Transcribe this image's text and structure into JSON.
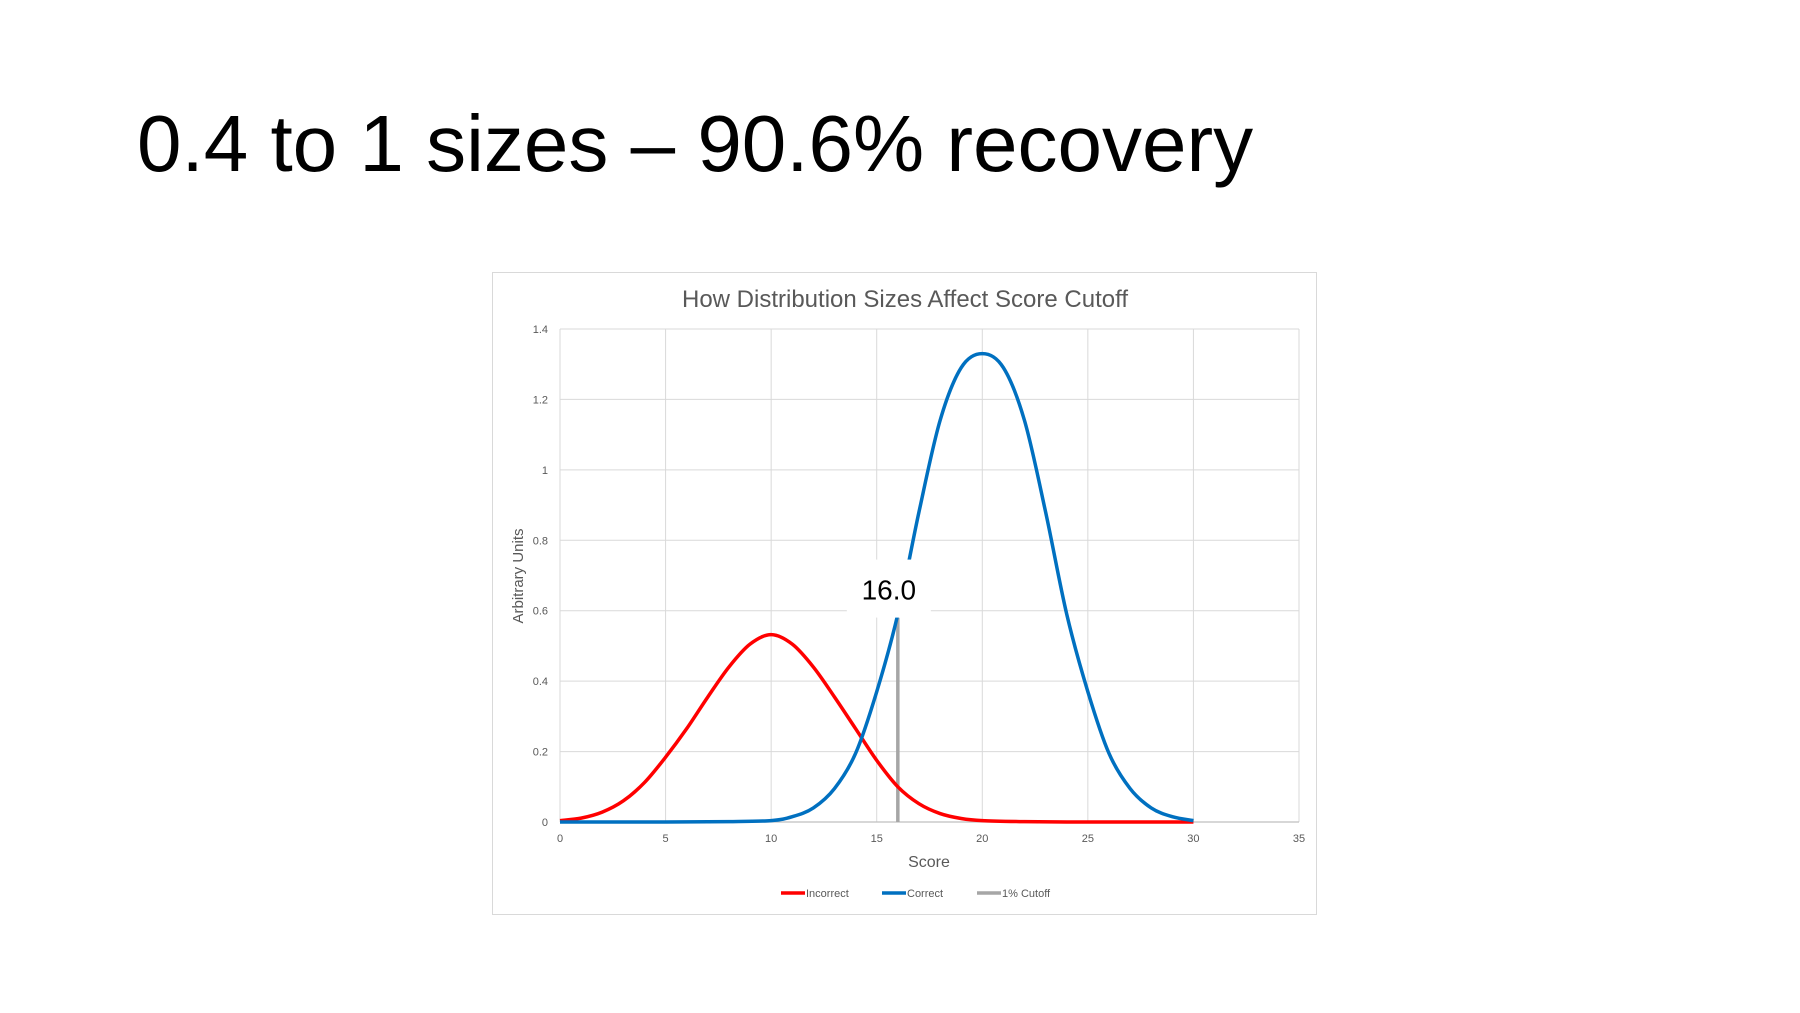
{
  "slide": {
    "title": "0.4 to 1 sizes – 90.6% recovery"
  },
  "chart_data": {
    "type": "line",
    "title": "How Distribution Sizes Affect Score Cutoff",
    "xlabel": "Score",
    "ylabel": "Arbitrary Units",
    "xlim": [
      0,
      35
    ],
    "ylim": [
      0,
      1.4
    ],
    "xticks": [
      0,
      5,
      10,
      15,
      20,
      25,
      30,
      35
    ],
    "yticks": [
      0,
      0.2,
      0.4,
      0.6,
      0.8,
      1,
      1.2,
      1.4
    ],
    "ytick_labels": [
      "0",
      "0.2",
      "0.4",
      "0.6",
      "0.8",
      "1",
      "1.2",
      "1.4"
    ],
    "grid": true,
    "legend_position": "bottom",
    "series": [
      {
        "name": "Incorrect",
        "color": "#ff0000",
        "x": [
          0,
          1,
          2,
          3,
          4,
          5,
          6,
          7,
          8,
          9,
          10,
          11,
          12,
          13,
          14,
          15,
          16,
          17,
          18,
          19,
          20,
          22,
          24,
          26,
          28,
          30
        ],
        "y": [
          0.004,
          0.011,
          0.028,
          0.06,
          0.112,
          0.184,
          0.265,
          0.355,
          0.44,
          0.505,
          0.532,
          0.505,
          0.44,
          0.355,
          0.265,
          0.175,
          0.1,
          0.052,
          0.024,
          0.01,
          0.004,
          0.001,
          0,
          0,
          0,
          0
        ]
      },
      {
        "name": "Correct",
        "color": "#0070c0",
        "x": [
          0,
          5,
          8,
          10,
          11,
          12,
          13,
          14,
          15,
          16,
          17,
          18,
          19,
          20,
          21,
          22,
          23,
          24,
          25,
          26,
          27,
          28,
          29,
          30
        ],
        "y": [
          0,
          0,
          0.001,
          0.004,
          0.015,
          0.04,
          0.095,
          0.195,
          0.37,
          0.59,
          0.88,
          1.14,
          1.29,
          1.33,
          1.29,
          1.14,
          0.88,
          0.59,
          0.37,
          0.195,
          0.095,
          0.04,
          0.015,
          0.004
        ]
      },
      {
        "name": "1% Cutoff",
        "color": "#a6a6a6",
        "x": [
          16.0,
          16.0
        ],
        "y": [
          0,
          0.58
        ]
      }
    ],
    "annotations": [
      {
        "text": "16.0",
        "x": 16.0,
        "y": 0.66
      }
    ]
  }
}
